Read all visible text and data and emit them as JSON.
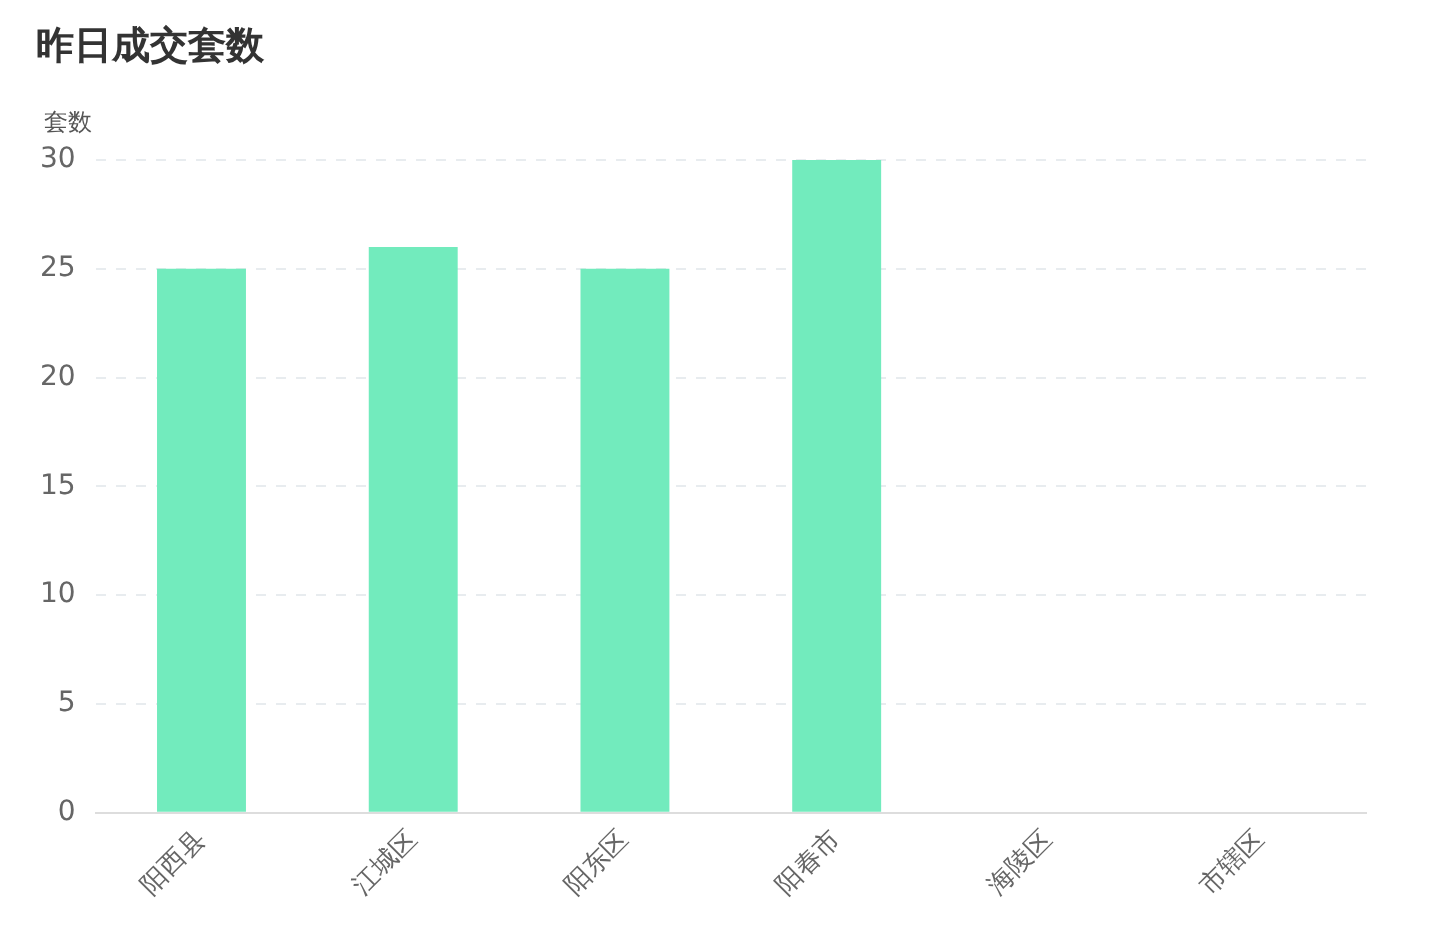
{
  "chart_data": {
    "type": "bar",
    "title": "昨日成交套数",
    "ylabel": "套数",
    "categories": [
      "阳西县",
      "江城区",
      "阳东区",
      "阳春市",
      "海陵区",
      "市辖区"
    ],
    "values": [
      25,
      26,
      25,
      30,
      0,
      0
    ],
    "color": "#72ebbd",
    "ylim": [
      0,
      30
    ],
    "yticks": [
      0,
      5,
      10,
      15,
      20,
      25,
      30
    ],
    "grid": "y",
    "legend": false
  }
}
